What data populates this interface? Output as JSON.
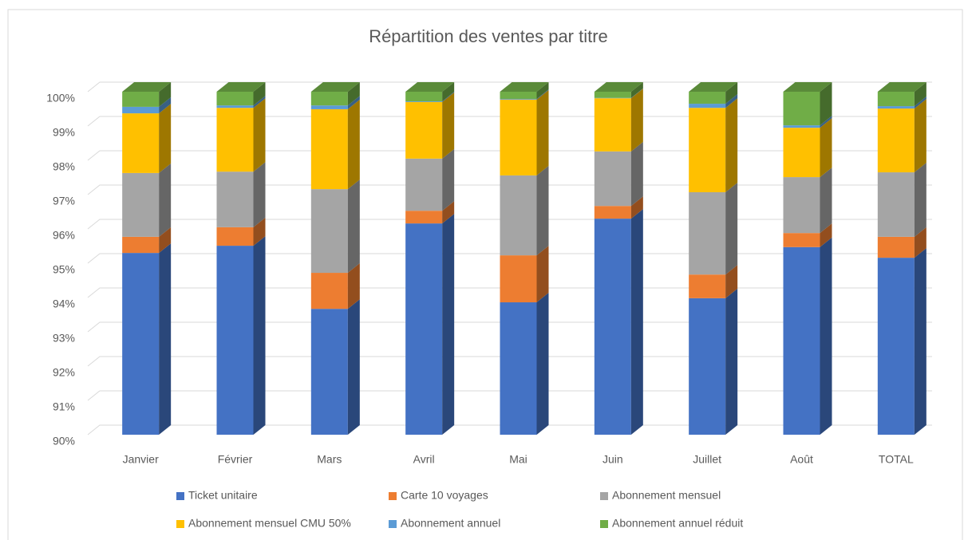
{
  "chart_data": {
    "type": "stacked_bar_3d",
    "title": "Répartition des ventes par titre",
    "categories": [
      "Janvier",
      "Février",
      "Mars",
      "Avril",
      "Mai",
      "Juin",
      "Juillet",
      "Août",
      "TOTAL"
    ],
    "series": [
      {
        "name": "Ticket unitaire",
        "color": "#4472c4",
        "values": [
          95.3,
          95.51,
          93.67,
          96.16,
          93.86,
          96.3,
          93.98,
          95.47,
          95.16
        ]
      },
      {
        "name": "Carte 10 voyages",
        "color": "#ed7d31",
        "values": [
          0.47,
          0.54,
          1.05,
          0.37,
          1.37,
          0.37,
          0.69,
          0.41,
          0.61
        ]
      },
      {
        "name": "Abonnement mensuel",
        "color": "#a5a5a5",
        "values": [
          1.86,
          1.62,
          2.44,
          1.52,
          2.33,
          1.59,
          2.4,
          1.63,
          1.88
        ]
      },
      {
        "name": "Abonnement mensuel CMU 50%",
        "color": "#ffc000",
        "values": [
          1.74,
          1.86,
          2.33,
          1.65,
          2.21,
          1.55,
          2.46,
          1.44,
          1.86
        ]
      },
      {
        "name": "Abonnement annuel",
        "color": "#5b9bd5",
        "values": [
          0.19,
          0.07,
          0.11,
          0.02,
          0.02,
          0.01,
          0.12,
          0.07,
          0.07
        ]
      },
      {
        "name": "Abonnement annuel réduit",
        "color": "#70ad47",
        "values": [
          0.44,
          0.4,
          0.4,
          0.28,
          0.21,
          0.18,
          0.35,
          0.98,
          0.42
        ]
      }
    ],
    "ylim": [
      90,
      100
    ],
    "yticks": [
      {
        "value": 90,
        "label": "90%"
      },
      {
        "value": 91,
        "label": "91%"
      },
      {
        "value": 92,
        "label": "92%"
      },
      {
        "value": 93,
        "label": "93%"
      },
      {
        "value": 94,
        "label": "94%"
      },
      {
        "value": 95,
        "label": "95%"
      },
      {
        "value": 96,
        "label": "96%"
      },
      {
        "value": 97,
        "label": "97%"
      },
      {
        "value": 98,
        "label": "98%"
      },
      {
        "value": 99,
        "label": "99%"
      },
      {
        "value": 100,
        "label": "100%"
      }
    ],
    "grid": true,
    "legend": "bottom"
  }
}
